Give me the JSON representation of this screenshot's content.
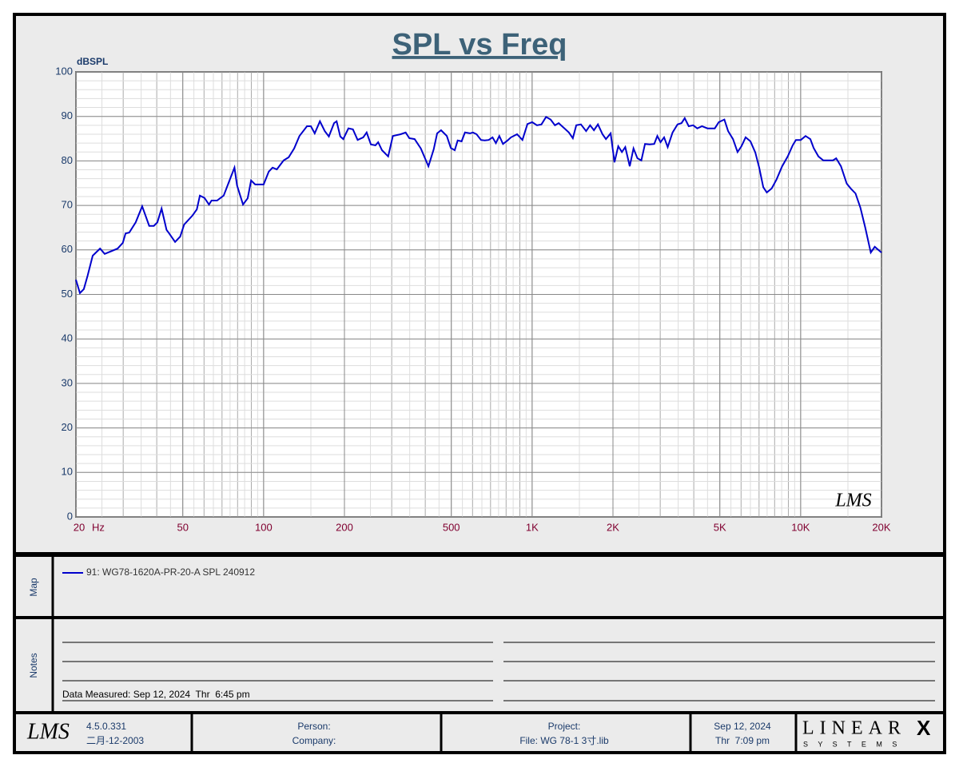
{
  "chart_data": {
    "type": "line",
    "title": "SPL vs Freq",
    "y_label": "dBSPL",
    "x_unit": "Hz",
    "x_scale": "log",
    "grid": true,
    "xlim": [
      20,
      20000
    ],
    "xticks": [
      20,
      50,
      100,
      200,
      500,
      {
        "value": 1000,
        "label": "1K"
      },
      {
        "value": 2000,
        "label": "2K"
      },
      {
        "value": 5000,
        "label": "5K"
      },
      {
        "value": 10000,
        "label": "10K"
      },
      {
        "value": 20000,
        "label": "20K"
      }
    ],
    "ylim": [
      0,
      100
    ],
    "yticks": [
      0,
      10,
      20,
      30,
      40,
      50,
      60,
      70,
      80,
      90,
      100
    ],
    "x": [
      20,
      20.7,
      21.4,
      22.1,
      23.1,
      24.6,
      25.6,
      28.6,
      29.9,
      30.6,
      31.6,
      33.4,
      35.3,
      37.5,
      39,
      40.2,
      41.7,
      43.5,
      44.5,
      46.8,
      48.9,
      50.6,
      54.3,
      56.4,
      57.9,
      60.2,
      62.6,
      64,
      67.1,
      71,
      74.2,
      77.9,
      79.6,
      83.8,
      87.2,
      89.8,
      93,
      100,
      104.5,
      108,
      112,
      118.7,
      124,
      130,
      136,
      145,
      150,
      155,
      162,
      169,
      175,
      183,
      187,
      193,
      198,
      207,
      215,
      224,
      235,
      242,
      251,
      261,
      267,
      276,
      291,
      303,
      324,
      338,
      349,
      365,
      385,
      411,
      430,
      443,
      458,
      481,
      498,
      515,
      528,
      546,
      562,
      587,
      602,
      621,
      645,
      666,
      689,
      712,
      733,
      755,
      779,
      810,
      834,
      879,
      920,
      961,
      1000,
      1042,
      1083,
      1127,
      1172,
      1216,
      1256,
      1315,
      1370,
      1418,
      1460,
      1519,
      1589,
      1644,
      1699,
      1758,
      1828,
      1883,
      1960,
      2026,
      2093,
      2160,
      2223,
      2310,
      2385,
      2467,
      2550,
      2633,
      2741,
      2849,
      2926,
      3007,
      3101,
      3199,
      3335,
      3480,
      3601,
      3700,
      3830,
      3980,
      4120,
      4290,
      4500,
      4790,
      4955,
      5200,
      5370,
      5600,
      5820,
      6020,
      6240,
      6500,
      6780,
      7010,
      7260,
      7480,
      7800,
      8130,
      8530,
      8950,
      9340,
      9600,
      10010,
      10430,
      10870,
      11180,
      11650,
      12140,
      12650,
      13180,
      13560,
      14130,
      14840,
      15360,
      16010,
      16690,
      17400,
      18250,
      18880,
      20000
    ],
    "series": [
      {
        "name": "91: WG78-1620A-PR-20-A SPL 240912",
        "color": "#0000cc",
        "values": [
          53.3,
          50.3,
          51.2,
          54.2,
          58.7,
          60.3,
          59.1,
          60.3,
          61.6,
          63.7,
          63.9,
          66.2,
          69.8,
          65.4,
          65.4,
          66.2,
          69.3,
          64.5,
          63.7,
          61.8,
          63.0,
          65.7,
          67.7,
          69.1,
          72.2,
          71.7,
          70.2,
          71.1,
          71.1,
          72.2,
          75.2,
          78.5,
          74.5,
          70.2,
          71.6,
          75.6,
          74.7,
          74.7,
          77.6,
          78.5,
          78.1,
          80.1,
          80.8,
          82.8,
          85.6,
          87.8,
          87.8,
          86.2,
          88.9,
          86.7,
          85.5,
          88.5,
          88.9,
          85.5,
          84.9,
          87.3,
          87.1,
          84.7,
          85.3,
          86.4,
          83.7,
          83.5,
          84.2,
          82.4,
          81.0,
          85.6,
          86.0,
          86.4,
          85.1,
          84.9,
          82.8,
          78.8,
          82.6,
          86.2,
          86.9,
          85.6,
          82.9,
          82.4,
          84.6,
          84.4,
          86.4,
          86.2,
          86.4,
          86.0,
          84.7,
          84.6,
          84.7,
          85.3,
          84.0,
          85.6,
          83.8,
          84.6,
          85.3,
          86.0,
          84.7,
          88.3,
          88.7,
          88.0,
          88.2,
          89.9,
          89.3,
          88.0,
          88.5,
          87.4,
          86.4,
          85.1,
          88.0,
          88.2,
          86.7,
          88.0,
          86.9,
          88.2,
          86.0,
          84.9,
          86.2,
          79.7,
          83.3,
          82.0,
          83.1,
          78.8,
          82.8,
          80.6,
          80.1,
          83.8,
          83.7,
          83.8,
          85.6,
          84.2,
          85.3,
          83.1,
          86.4,
          88.2,
          88.5,
          89.6,
          87.8,
          88.0,
          87.3,
          87.8,
          87.3,
          87.3,
          88.7,
          89.3,
          86.7,
          84.9,
          82.0,
          83.3,
          85.3,
          84.4,
          81.9,
          78.5,
          74.1,
          72.9,
          73.8,
          75.8,
          78.8,
          81.0,
          83.5,
          84.7,
          84.7,
          85.6,
          84.9,
          82.9,
          81.0,
          80.1,
          80.1,
          80.1,
          80.6,
          78.8,
          74.9,
          73.8,
          72.7,
          69.5,
          65.0,
          59.4,
          60.7,
          59.4
        ]
      }
    ],
    "watermark": "LMS"
  },
  "map_label": "Map",
  "notes": {
    "label": "Notes",
    "measured": "Data Measured: Sep 12, 2024  Thr  6:45 pm"
  },
  "footer": {
    "logo": "LMS",
    "version": "4.5.0.331",
    "build_date": "二月-12-2003",
    "person": "Person:",
    "company": "Company:",
    "project": "Project:",
    "file": "File: WG 78-1 3寸.lib",
    "date": "Sep 12, 2024",
    "time": "Thr  7:09 pm",
    "brand": "LINEAR",
    "brand_x": "X",
    "brand_sub": "S Y S T E M S"
  }
}
